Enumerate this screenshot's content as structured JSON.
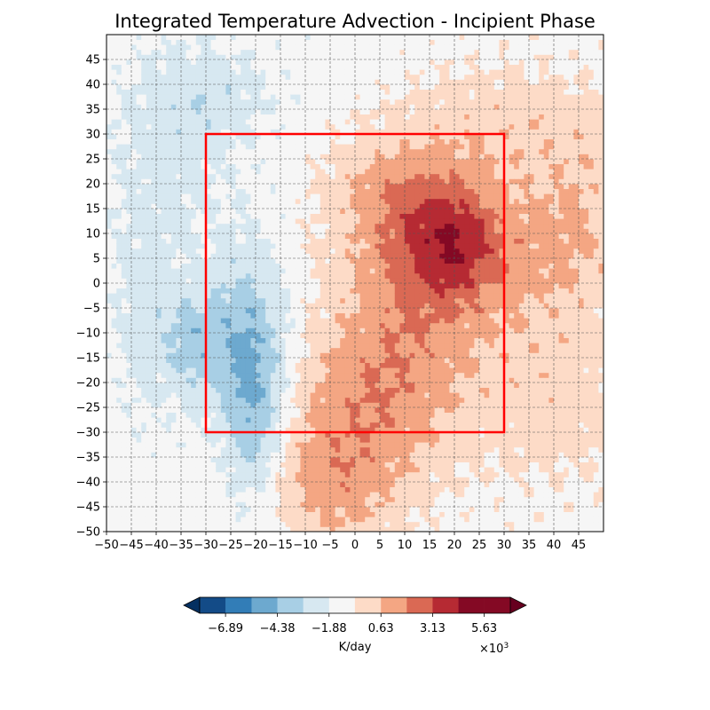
{
  "chart_data": {
    "type": "heatmap",
    "title": "Integrated Temperature Advection - Incipient Phase",
    "xlabel": "",
    "ylabel": "",
    "xlim": [
      -50,
      50
    ],
    "ylim": [
      -50,
      50
    ],
    "x_ticks": [
      -50,
      -45,
      -40,
      -35,
      -30,
      -25,
      -20,
      -15,
      -10,
      -5,
      0,
      5,
      10,
      15,
      20,
      25,
      30,
      35,
      40,
      45
    ],
    "y_ticks": [
      -50,
      -45,
      -40,
      -35,
      -30,
      -25,
      -20,
      -15,
      -10,
      -5,
      0,
      5,
      10,
      15,
      20,
      25,
      30,
      35,
      40,
      45
    ],
    "grid": true,
    "colormap": "RdBu_r",
    "colorbar": {
      "label": "K/day",
      "scale_label": "×10",
      "scale_exponent": "3",
      "extend": "both",
      "tick_values": [
        -6.89,
        -4.38,
        -1.88,
        0.63,
        3.13,
        5.63
      ],
      "tick_labels": [
        "−6.89",
        "−4.38",
        "−1.88",
        "0.63",
        "3.13",
        "5.63"
      ],
      "levels": [
        -8.14,
        -6.89,
        -5.63,
        -4.38,
        -3.13,
        -1.88,
        -0.63,
        0.63,
        1.88,
        3.13,
        4.38,
        5.63,
        6.89
      ],
      "colors": [
        "#053061",
        "#134b87",
        "#327db7",
        "#6da9cf",
        "#a8cfe5",
        "#d7e8f1",
        "#f6f6f6",
        "#fddbc7",
        "#f4a683",
        "#da6954",
        "#b62a33",
        "#840924",
        "#67001f"
      ]
    },
    "annotation_box": {
      "x": [
        -30,
        30
      ],
      "y": [
        -30,
        30
      ],
      "color": "#ff0000"
    },
    "field": {
      "background": 0.0,
      "noise_amplitude": 0.5,
      "features": [
        {
          "x": 20,
          "y": 8,
          "amp": 3.2,
          "sx": 7,
          "sy": 8
        },
        {
          "x": 12,
          "y": 0,
          "amp": 2.6,
          "sx": 11,
          "sy": 16
        },
        {
          "x": 2,
          "y": -25,
          "amp": 2.4,
          "sx": 12,
          "sy": 12
        },
        {
          "x": -5,
          "y": -42,
          "amp": 1.9,
          "sx": 10,
          "sy": 9
        },
        {
          "x": 35,
          "y": 5,
          "amp": 1.6,
          "sx": 9,
          "sy": 12
        },
        {
          "x": 30,
          "y": 32,
          "amp": 1.3,
          "sx": 14,
          "sy": 9
        },
        {
          "x": 40,
          "y": -25,
          "amp": 1.2,
          "sx": 12,
          "sy": 12
        },
        {
          "x": 46,
          "y": 14,
          "amp": 1.3,
          "sx": 6,
          "sy": 14
        },
        {
          "x": 8,
          "y": 18,
          "amp": 1.6,
          "sx": 10,
          "sy": 8
        },
        {
          "x": -22,
          "y": -12,
          "amp": -3.0,
          "sx": 6,
          "sy": 13
        },
        {
          "x": -20,
          "y": -30,
          "amp": -2.2,
          "sx": 4,
          "sy": 12
        },
        {
          "x": -33,
          "y": -12,
          "amp": -2.0,
          "sx": 4,
          "sy": 7
        },
        {
          "x": -36,
          "y": 30,
          "amp": -1.2,
          "sx": 9,
          "sy": 14
        },
        {
          "x": -42,
          "y": -5,
          "amp": -1.2,
          "sx": 5,
          "sy": 16
        },
        {
          "x": -26,
          "y": 38,
          "amp": -0.9,
          "sx": 8,
          "sy": 6
        }
      ]
    }
  }
}
